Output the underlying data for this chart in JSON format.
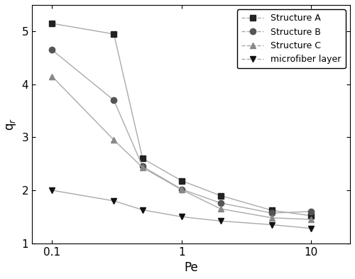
{
  "structure_A": {
    "x": [
      0.1,
      0.3,
      0.5,
      1.0,
      2.0,
      5.0,
      10.0
    ],
    "y": [
      5.15,
      4.95,
      2.6,
      2.18,
      1.9,
      1.62,
      1.52
    ],
    "label": "Structure A",
    "marker": "s",
    "line_color": "#aaaaaa",
    "marker_color": "#222222",
    "markersize": 6
  },
  "structure_B": {
    "x": [
      0.1,
      0.3,
      0.5,
      1.0,
      2.0,
      5.0,
      10.0
    ],
    "y": [
      4.65,
      3.7,
      2.45,
      2.02,
      1.76,
      1.57,
      1.6
    ],
    "label": "Structure B",
    "marker": "o",
    "line_color": "#aaaaaa",
    "marker_color": "#555555",
    "markersize": 6
  },
  "structure_C": {
    "x": [
      0.1,
      0.3,
      0.5,
      1.0,
      2.0,
      5.0,
      10.0
    ],
    "y": [
      4.15,
      2.95,
      2.43,
      2.01,
      1.65,
      1.48,
      1.45
    ],
    "label": "Structure C",
    "marker": "^",
    "line_color": "#aaaaaa",
    "marker_color": "#888888",
    "markersize": 6
  },
  "microfiber": {
    "x": [
      0.1,
      0.3,
      0.5,
      1.0,
      2.0,
      5.0,
      10.0
    ],
    "y": [
      2.0,
      1.8,
      1.63,
      1.5,
      1.42,
      1.35,
      1.28
    ],
    "label": "microfiber layer",
    "marker": "v",
    "line_color": "#aaaaaa",
    "marker_color": "#111111",
    "markersize": 6
  },
  "xlabel": "Pe",
  "ylabel": "q$_r$",
  "xlim": [
    0.07,
    20
  ],
  "ylim": [
    1.0,
    5.5
  ],
  "yticks": [
    1,
    2,
    3,
    4,
    5
  ],
  "xticks": [
    0.1,
    1,
    10
  ],
  "xticklabels": [
    "0.1",
    "1",
    "10"
  ],
  "legend_loc": "upper right",
  "linewidth": 1.0,
  "linestyle": "-",
  "background_color": "#ffffff"
}
